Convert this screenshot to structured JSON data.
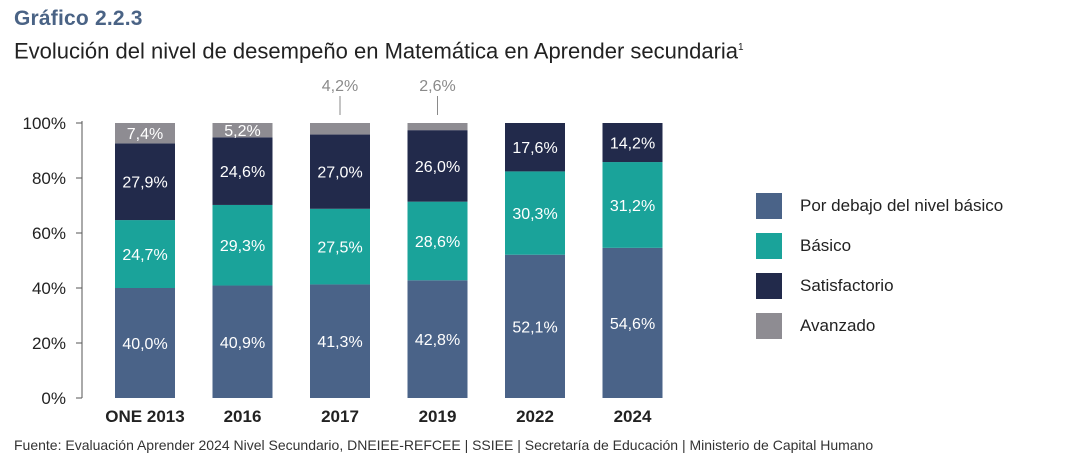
{
  "heading": {
    "label": "Gráfico 2.2.3",
    "title": "Evolución del nivel de desempeño en Matemática en Aprender secundaria",
    "footnote_mark": "1"
  },
  "source": "Fuente: Evaluación Aprender 2024 Nivel Secundario, DNEIEE-REFCEE | SSIEE | Secretaría de Educación | Ministerio de Capital Humano",
  "chart_data": {
    "type": "bar",
    "stacked": true,
    "categories": [
      "ONE 2013",
      "2016",
      "2017",
      "2019",
      "2022",
      "2024"
    ],
    "series": [
      {
        "name": "Por debajo del nivel básico",
        "color": "#4a6388",
        "values": [
          40.0,
          40.9,
          41.3,
          42.8,
          52.1,
          54.6
        ],
        "labels": [
          "40,0%",
          "40,9%",
          "41,3%",
          "42,8%",
          "52,1%",
          "54,6%"
        ]
      },
      {
        "name": "Básico",
        "color": "#1aa39a",
        "values": [
          24.7,
          29.3,
          27.5,
          28.6,
          30.3,
          31.2
        ],
        "labels": [
          "24,7%",
          "29,3%",
          "27,5%",
          "28,6%",
          "30,3%",
          "31,2%"
        ]
      },
      {
        "name": "Satisfactorio",
        "color": "#222a4b",
        "values": [
          27.9,
          24.6,
          27.0,
          26.0,
          17.6,
          14.2
        ],
        "labels": [
          "27,9%",
          "24,6%",
          "27,0%",
          "26,0%",
          "17,6%",
          "14,2%"
        ]
      },
      {
        "name": "Avanzado",
        "color": "#8e8c92",
        "values": [
          7.4,
          5.2,
          4.2,
          2.6,
          0,
          0
        ],
        "labels": [
          "7,4%",
          "5,2%",
          "4,2%",
          "2,6%",
          "",
          ""
        ]
      }
    ],
    "yticks": [
      "0%",
      "20%",
      "40%",
      "60%",
      "80%",
      "100%"
    ],
    "ylim": [
      0,
      100
    ],
    "grid": false,
    "legend_position": "right"
  }
}
